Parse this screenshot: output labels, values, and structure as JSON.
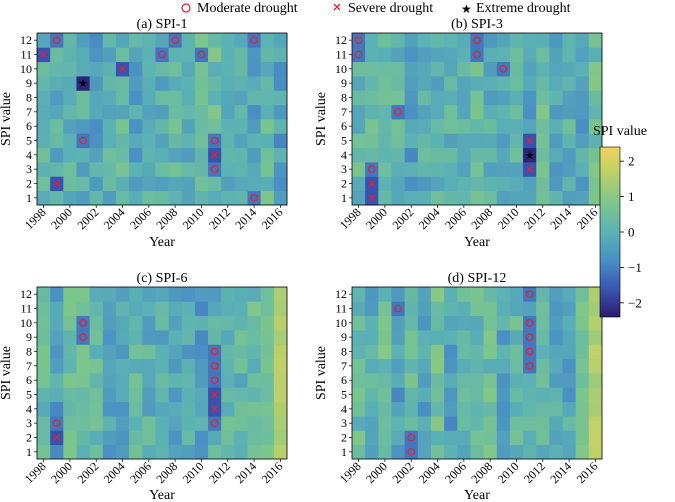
{
  "legend": {
    "items": [
      {
        "label": "Moderate drought",
        "marker": "circle"
      },
      {
        "label": "Severe drought",
        "marker": "x"
      },
      {
        "label": "Extreme drought",
        "marker": "star"
      }
    ]
  },
  "colorbar": {
    "label": "SPI value",
    "ticks": [
      "2",
      "1",
      "0",
      "−1",
      "−2"
    ],
    "range": [
      -2.4,
      2.4
    ],
    "colormap": [
      "#2b1a6e",
      "#3b56b3",
      "#4a8fc4",
      "#5cb2b4",
      "#7cc68c",
      "#b7cf6c",
      "#f2d35b"
    ]
  },
  "chart_data": [
    {
      "type": "heatmap",
      "title": "(a) SPI-1",
      "xlabel": "Year",
      "ylabel": "SPI value",
      "x_ticks": [
        "1998",
        "2000",
        "2002",
        "2004",
        "2006",
        "2008",
        "2010",
        "2012",
        "2014",
        "2016"
      ],
      "y_ticks": [
        "1",
        "2",
        "3",
        "4",
        "5",
        "6",
        "7",
        "8",
        "9",
        "10",
        "11",
        "12"
      ],
      "years": [
        1998,
        2016
      ],
      "markers": [
        {
          "year": 1998,
          "month": 11,
          "level": "severe"
        },
        {
          "year": 1999,
          "month": 12,
          "level": "moderate"
        },
        {
          "year": 1999,
          "month": 2,
          "level": "severe"
        },
        {
          "year": 2001,
          "month": 9,
          "level": "extreme"
        },
        {
          "year": 2001,
          "month": 5,
          "level": "moderate"
        },
        {
          "year": 2004,
          "month": 10,
          "level": "severe"
        },
        {
          "year": 2007,
          "month": 11,
          "level": "moderate"
        },
        {
          "year": 2008,
          "month": 12,
          "level": "moderate"
        },
        {
          "year": 2010,
          "month": 11,
          "level": "moderate"
        },
        {
          "year": 2011,
          "month": 5,
          "level": "moderate"
        },
        {
          "year": 2011,
          "month": 4,
          "level": "severe"
        },
        {
          "year": 2011,
          "month": 3,
          "level": "moderate"
        },
        {
          "year": 2014,
          "month": 12,
          "level": "moderate"
        },
        {
          "year": 2014,
          "month": 1,
          "level": "moderate"
        }
      ]
    },
    {
      "type": "heatmap",
      "title": "(b) SPI-3",
      "xlabel": "Year",
      "ylabel": "SPI value",
      "x_ticks": [
        "1998",
        "2000",
        "2002",
        "2004",
        "2006",
        "2008",
        "2010",
        "2012",
        "2014",
        "2016"
      ],
      "y_ticks": [
        "1",
        "2",
        "3",
        "4",
        "5",
        "6",
        "7",
        "8",
        "9",
        "10",
        "11",
        "12"
      ],
      "years": [
        1998,
        2016
      ],
      "markers": [
        {
          "year": 1998,
          "month": 12,
          "level": "moderate"
        },
        {
          "year": 1998,
          "month": 11,
          "level": "moderate"
        },
        {
          "year": 1999,
          "month": 3,
          "level": "moderate"
        },
        {
          "year": 1999,
          "month": 2,
          "level": "severe"
        },
        {
          "year": 1999,
          "month": 1,
          "level": "severe"
        },
        {
          "year": 2001,
          "month": 7,
          "level": "moderate"
        },
        {
          "year": 2007,
          "month": 12,
          "level": "moderate"
        },
        {
          "year": 2007,
          "month": 11,
          "level": "moderate"
        },
        {
          "year": 2009,
          "month": 10,
          "level": "moderate"
        },
        {
          "year": 2011,
          "month": 5,
          "level": "severe"
        },
        {
          "year": 2011,
          "month": 4,
          "level": "extreme"
        },
        {
          "year": 2011,
          "month": 3,
          "level": "severe"
        }
      ]
    },
    {
      "type": "heatmap",
      "title": "(c) SPI-6",
      "xlabel": "Year",
      "ylabel": "SPI value",
      "x_ticks": [
        "1998",
        "2000",
        "2002",
        "2004",
        "2006",
        "2008",
        "2010",
        "2012",
        "2014",
        "2016"
      ],
      "y_ticks": [
        "1",
        "2",
        "3",
        "4",
        "5",
        "6",
        "7",
        "8",
        "9",
        "10",
        "11",
        "12"
      ],
      "years": [
        1998,
        2016
      ],
      "markers": [
        {
          "year": 1999,
          "month": 3,
          "level": "moderate"
        },
        {
          "year": 1999,
          "month": 2,
          "level": "severe"
        },
        {
          "year": 2001,
          "month": 10,
          "level": "moderate"
        },
        {
          "year": 2001,
          "month": 9,
          "level": "moderate"
        },
        {
          "year": 2011,
          "month": 8,
          "level": "moderate"
        },
        {
          "year": 2011,
          "month": 7,
          "level": "moderate"
        },
        {
          "year": 2011,
          "month": 6,
          "level": "moderate"
        },
        {
          "year": 2011,
          "month": 5,
          "level": "severe"
        },
        {
          "year": 2011,
          "month": 4,
          "level": "severe"
        },
        {
          "year": 2011,
          "month": 3,
          "level": "moderate"
        }
      ]
    },
    {
      "type": "heatmap",
      "title": "(d) SPI-12",
      "xlabel": "Year",
      "ylabel": "SPI value",
      "x_ticks": [
        "1998",
        "2000",
        "2002",
        "2004",
        "2006",
        "2008",
        "2010",
        "2012",
        "2014",
        "2016"
      ],
      "y_ticks": [
        "1",
        "2",
        "3",
        "4",
        "5",
        "6",
        "7",
        "8",
        "9",
        "10",
        "11",
        "12"
      ],
      "years": [
        1998,
        2016
      ],
      "markers": [
        {
          "year": 2001,
          "month": 11,
          "level": "moderate"
        },
        {
          "year": 2002,
          "month": 2,
          "level": "moderate"
        },
        {
          "year": 2002,
          "month": 1,
          "level": "moderate"
        },
        {
          "year": 2011,
          "month": 12,
          "level": "moderate"
        },
        {
          "year": 2011,
          "month": 10,
          "level": "moderate"
        },
        {
          "year": 2011,
          "month": 9,
          "level": "moderate"
        },
        {
          "year": 2011,
          "month": 8,
          "level": "moderate"
        },
        {
          "year": 2011,
          "month": 7,
          "level": "moderate"
        }
      ]
    }
  ]
}
